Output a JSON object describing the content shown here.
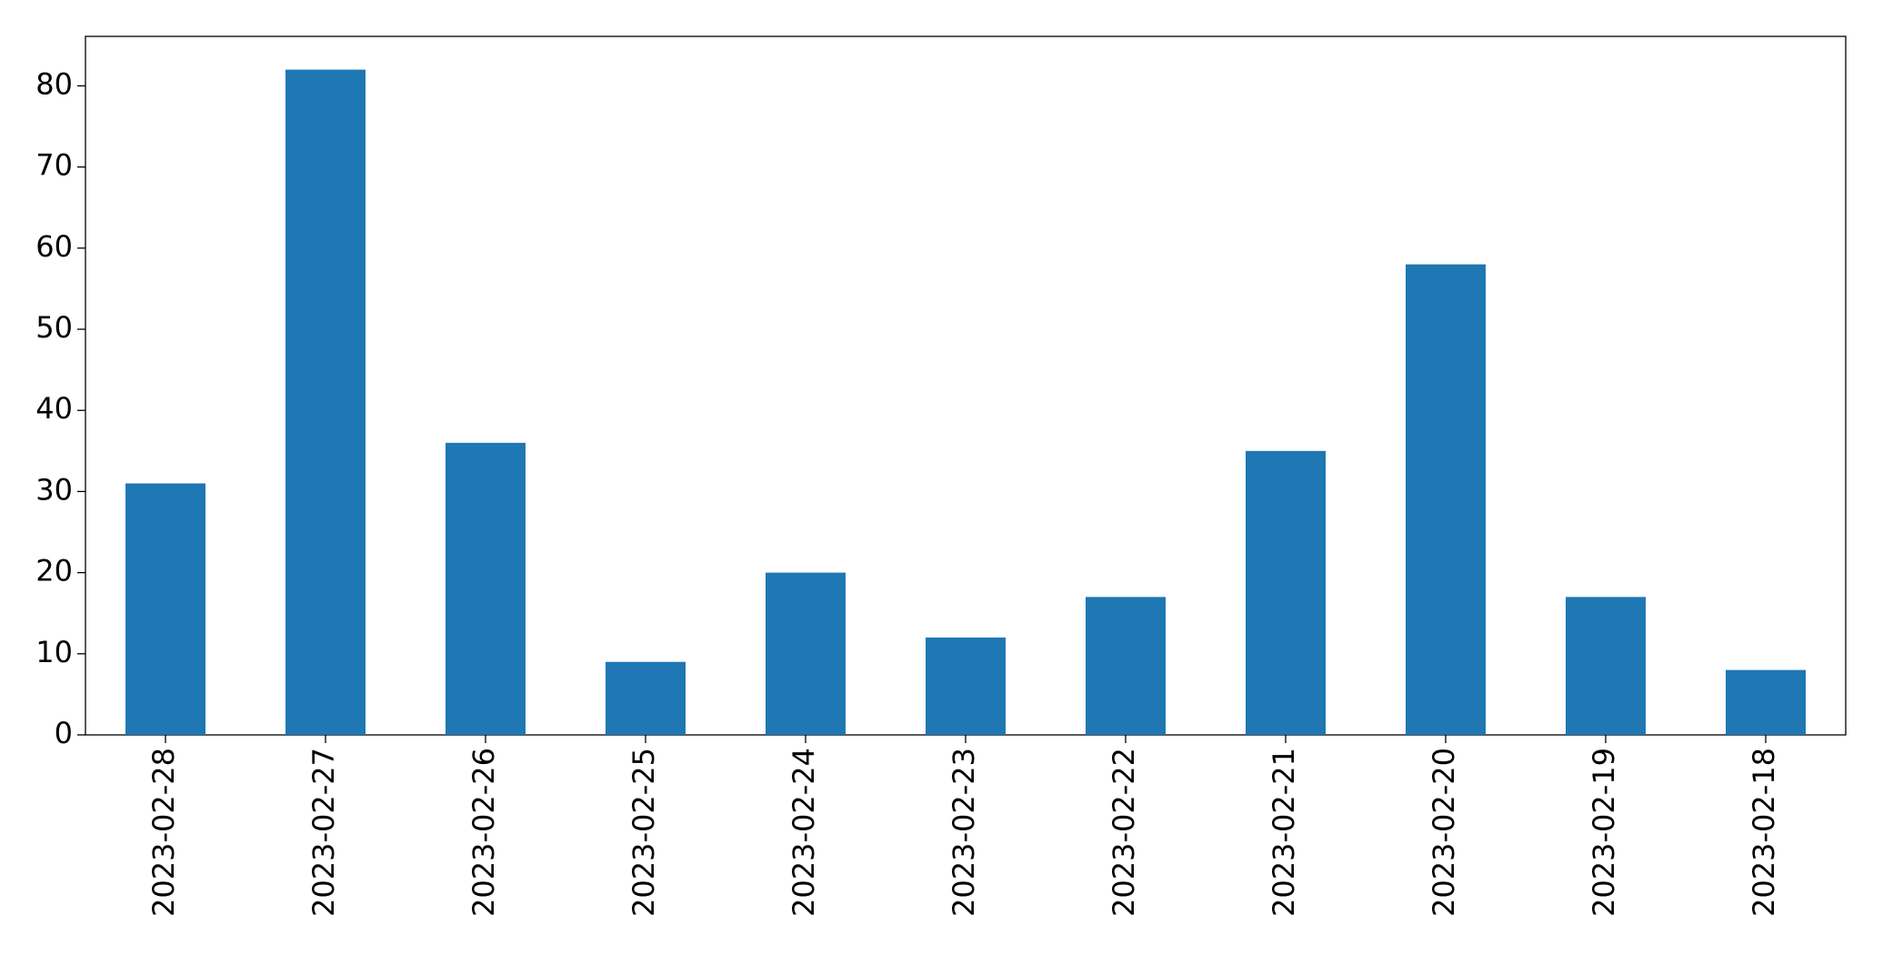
{
  "chart_data": {
    "type": "bar",
    "categories": [
      "2023-02-28",
      "2023-02-27",
      "2023-02-26",
      "2023-02-25",
      "2023-02-24",
      "2023-02-23",
      "2023-02-22",
      "2023-02-21",
      "2023-02-20",
      "2023-02-19",
      "2023-02-18"
    ],
    "values": [
      31,
      82,
      36,
      9,
      20,
      12,
      17,
      35,
      58,
      17,
      8
    ],
    "color": "#1f77b4",
    "ylim": [
      0,
      86.1
    ],
    "yticks": [
      0,
      10,
      20,
      30,
      40,
      50,
      60,
      70,
      80
    ],
    "grid": false
  }
}
